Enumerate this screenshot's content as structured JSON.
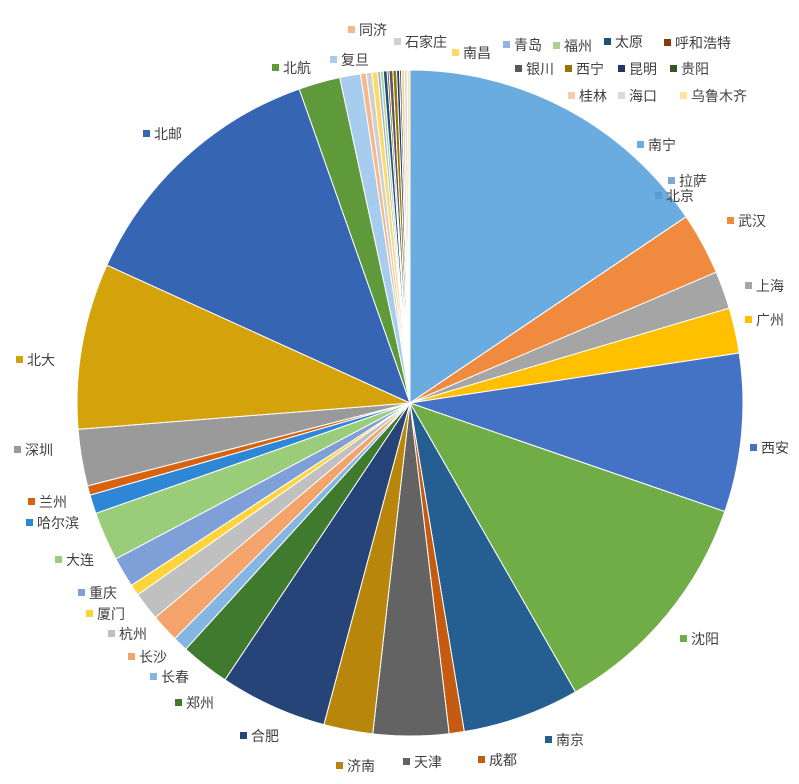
{
  "chart_data": {
    "type": "pie",
    "title": "",
    "start_angle_deg": 90,
    "direction": "clockwise",
    "slices": [
      {
        "label": "南宁",
        "value": 17.0,
        "color": "#6aabe0"
      },
      {
        "label": "拉萨",
        "value": 0.001,
        "color": "#7fa6da"
      },
      {
        "label": "北京",
        "value": 0.001,
        "color": "#5b9bd5"
      },
      {
        "label": "武汉",
        "value": 3.3,
        "color": "#f08a3e"
      },
      {
        "label": "上海",
        "value": 2.0,
        "color": "#a5a5a5"
      },
      {
        "label": "广州",
        "value": 2.4,
        "color": "#ffc000"
      },
      {
        "label": "西安",
        "value": 8.4,
        "color": "#4472c4"
      },
      {
        "label": "沈阳",
        "value": 12.5,
        "color": "#70ad47"
      },
      {
        "label": "南京",
        "value": 6.2,
        "color": "#255e91"
      },
      {
        "label": "成都",
        "value": 0.8,
        "color": "#c55a11"
      },
      {
        "label": "天津",
        "value": 4.0,
        "color": "#636363"
      },
      {
        "label": "济南",
        "value": 2.6,
        "color": "#b8860b"
      },
      {
        "label": "合肥",
        "value": 5.7,
        "color": "#264478"
      },
      {
        "label": "郑州",
        "value": 2.6,
        "color": "#3f7a2e"
      },
      {
        "label": "长春",
        "value": 0.8,
        "color": "#84b5e3"
      },
      {
        "label": "长沙",
        "value": 1.5,
        "color": "#f4a46a"
      },
      {
        "label": "杭州",
        "value": 1.5,
        "color": "#c0c0c0"
      },
      {
        "label": "厦门",
        "value": 0.6,
        "color": "#ffd43b"
      },
      {
        "label": "重庆",
        "value": 1.6,
        "color": "#7f9fd8"
      },
      {
        "label": "大连",
        "value": 2.6,
        "color": "#9acd79"
      },
      {
        "label": "哈尔滨",
        "value": 1.0,
        "color": "#2e86d6"
      },
      {
        "label": "兰州",
        "value": 0.5,
        "color": "#d9620e"
      },
      {
        "label": "深圳",
        "value": 3.0,
        "color": "#9a9a9a"
      },
      {
        "label": "北大",
        "value": 8.8,
        "color": "#d4a20b"
      },
      {
        "label": "北邮",
        "value": 14.0,
        "color": "#3665b3"
      },
      {
        "label": "北航",
        "value": 2.2,
        "color": "#5e9a3a"
      },
      {
        "label": "复旦",
        "value": 1.1,
        "color": "#a6cdee"
      },
      {
        "label": "同济",
        "value": 0.3,
        "color": "#f6b78c"
      },
      {
        "label": "石家庄",
        "value": 0.3,
        "color": "#d0d0d0"
      },
      {
        "label": "南昌",
        "value": 0.3,
        "color": "#ffd966"
      },
      {
        "label": "青岛",
        "value": 0.15,
        "color": "#8eb4e3"
      },
      {
        "label": "福州",
        "value": 0.15,
        "color": "#a9d18e"
      },
      {
        "label": "太原",
        "value": 0.2,
        "color": "#1f4e79"
      },
      {
        "label": "呼和浩特",
        "value": 0.1,
        "color": "#843c0c"
      },
      {
        "label": "银川",
        "value": 0.2,
        "color": "#595959"
      },
      {
        "label": "西宁",
        "value": 0.2,
        "color": "#997300"
      },
      {
        "label": "昆明",
        "value": 0.15,
        "color": "#203864"
      },
      {
        "label": "贵阳",
        "value": 0.1,
        "color": "#375623"
      },
      {
        "label": "桂林",
        "value": 0.15,
        "color": "#f8cbad"
      },
      {
        "label": "海口",
        "value": 0.15,
        "color": "#dbdbdb"
      },
      {
        "label": "乌鲁木齐",
        "value": 0.15,
        "color": "#ffe699"
      }
    ]
  }
}
